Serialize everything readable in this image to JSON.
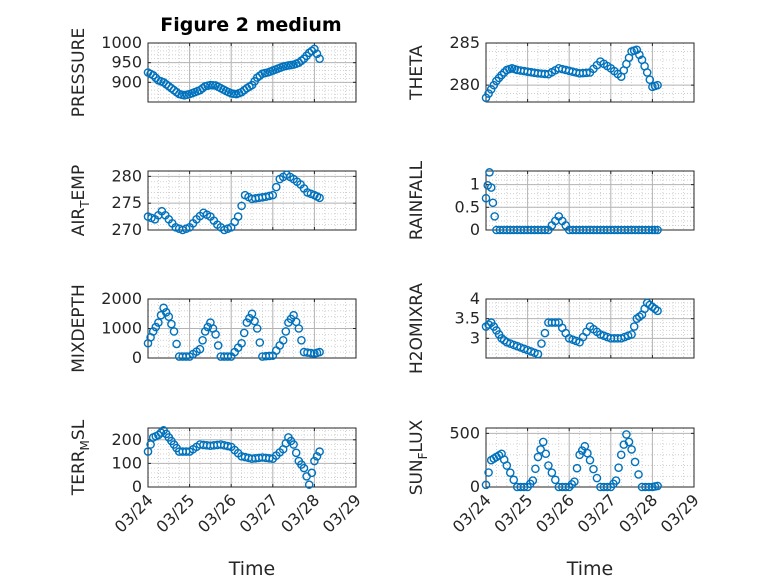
{
  "chart_data": [
    {
      "type": "scatter",
      "title": "Figure 2 medium",
      "ylabel": "PRESSURE",
      "xlim": [
        "03/24",
        "03/29"
      ],
      "ylim": [
        850,
        1000
      ],
      "yticks": [
        "900",
        "950",
        "1000"
      ],
      "xticks": [],
      "xlabel": "",
      "grid": true,
      "x": [
        "03/24 00:00",
        "03/24 03:00",
        "03/24 06:00",
        "03/24 09:00",
        "03/24 12:00",
        "03/24 15:00",
        "03/24 18:00",
        "03/24 21:00",
        "03/25 00:00",
        "03/25 03:00",
        "03/25 06:00",
        "03/25 09:00",
        "03/25 12:00",
        "03/25 15:00",
        "03/25 18:00",
        "03/25 21:00",
        "03/26 00:00",
        "03/26 03:00",
        "03/26 06:00",
        "03/26 09:00",
        "03/26 12:00",
        "03/26 15:00",
        "03/26 18:00",
        "03/26 21:00",
        "03/27 00:00",
        "03/27 03:00",
        "03/27 06:00",
        "03/27 09:00",
        "03/27 12:00",
        "03/27 15:00",
        "03/27 18:00",
        "03/27 21:00",
        "03/28 00:00",
        "03/28 03:00"
      ],
      "values": [
        925,
        918,
        905,
        900,
        890,
        880,
        870,
        867,
        870,
        875,
        880,
        890,
        893,
        892,
        885,
        878,
        872,
        870,
        875,
        885,
        893,
        912,
        922,
        925,
        930,
        935,
        940,
        943,
        945,
        950,
        960,
        975,
        985,
        960
      ]
    },
    {
      "type": "scatter",
      "title": "",
      "ylabel": "THETA",
      "xlim": [
        "03/24",
        "03/29"
      ],
      "ylim": [
        278,
        285
      ],
      "yticks": [
        "280",
        "285"
      ],
      "xticks": [],
      "xlabel": "",
      "grid": true,
      "x": [
        "03/24 00:00",
        "03/24 03:00",
        "03/24 06:00",
        "03/24 09:00",
        "03/24 12:00",
        "03/24 15:00",
        "03/24 18:00",
        "03/25 00:00",
        "03/25 06:00",
        "03/25 12:00",
        "03/25 18:00",
        "03/26 00:00",
        "03/26 06:00",
        "03/26 12:00",
        "03/26 18:00",
        "03/27 00:00",
        "03/27 06:00",
        "03/27 09:00",
        "03/27 12:00",
        "03/27 15:00",
        "03/27 18:00",
        "03/27 21:00",
        "03/28 00:00",
        "03/28 03:00"
      ],
      "values": [
        278.5,
        279.5,
        280.5,
        281.2,
        281.8,
        282.0,
        281.8,
        281.6,
        281.4,
        281.3,
        282.0,
        281.7,
        281.4,
        281.5,
        282.8,
        282.0,
        281.0,
        282.5,
        284.0,
        284.2,
        283.0,
        281.5,
        279.8,
        280.0
      ]
    },
    {
      "type": "scatter",
      "title": "",
      "ylabel": "AIR_TEMP",
      "ylabel_base": "AIR",
      "ylabel_sub": "T",
      "ylabel_rest": "EMP",
      "xlim": [
        "03/24",
        "03/29"
      ],
      "ylim": [
        270,
        281
      ],
      "yticks": [
        "270",
        "275",
        "280"
      ],
      "xticks": [],
      "xlabel": "",
      "grid": true,
      "x": [
        "03/24 00:00",
        "03/24 04:00",
        "03/24 08:00",
        "03/24 12:00",
        "03/24 16:00",
        "03/24 20:00",
        "03/25 00:00",
        "03/25 04:00",
        "03/25 08:00",
        "03/25 12:00",
        "03/25 16:00",
        "03/25 20:00",
        "03/26 00:00",
        "03/26 04:00",
        "03/26 08:00",
        "03/26 12:00",
        "03/26 16:00",
        "03/26 20:00",
        "03/27 00:00",
        "03/27 04:00",
        "03/27 08:00",
        "03/27 12:00",
        "03/27 16:00",
        "03/27 20:00",
        "03/28 00:00",
        "03/28 03:00"
      ],
      "values": [
        272.5,
        272.0,
        273.5,
        272.0,
        270.5,
        270.0,
        270.5,
        272.0,
        273.2,
        272.5,
        271.0,
        270.0,
        270.5,
        272.5,
        276.5,
        275.8,
        276.0,
        276.2,
        276.5,
        279.5,
        280.3,
        279.5,
        278.5,
        277.0,
        276.5,
        276.0
      ]
    },
    {
      "type": "scatter",
      "title": "",
      "ylabel": "RAINFALL",
      "xlim": [
        "03/24",
        "03/29"
      ],
      "ylim": [
        0,
        1.3
      ],
      "yticks": [
        "0",
        "0.5",
        "1"
      ],
      "xticks": [],
      "xlabel": "",
      "grid": true,
      "x": [
        "03/24 00:00",
        "03/24 02:00",
        "03/24 04:00",
        "03/24 06:00",
        "03/24 12:00",
        "03/24 18:00",
        "03/25 00:00",
        "03/25 06:00",
        "03/25 12:00",
        "03/25 18:00",
        "03/26 00:00",
        "03/26 06:00",
        "03/26 12:00",
        "03/26 18:00",
        "03/27 00:00",
        "03/27 06:00",
        "03/27 12:00",
        "03/27 18:00",
        "03/28 00:00",
        "03/28 03:00"
      ],
      "values": [
        0.7,
        1.27,
        0.6,
        0,
        0,
        0,
        0,
        0,
        0,
        0.3,
        0,
        0,
        0,
        0,
        0,
        0,
        0,
        0,
        0,
        0
      ]
    },
    {
      "type": "scatter",
      "title": "",
      "ylabel": "MIXDEPTH",
      "xlim": [
        "03/24",
        "03/29"
      ],
      "ylim": [
        0,
        2000
      ],
      "yticks": [
        "0",
        "1000",
        "2000"
      ],
      "xticks": [],
      "xlabel": "",
      "grid": true,
      "x": [
        "03/24 00:00",
        "03/24 03:00",
        "03/24 06:00",
        "03/24 09:00",
        "03/24 12:00",
        "03/24 15:00",
        "03/24 18:00",
        "03/25 00:00",
        "03/25 06:00",
        "03/25 09:00",
        "03/25 12:00",
        "03/25 15:00",
        "03/25 18:00",
        "03/26 00:00",
        "03/26 06:00",
        "03/26 09:00",
        "03/26 12:00",
        "03/26 15:00",
        "03/26 18:00",
        "03/27 00:00",
        "03/27 06:00",
        "03/27 09:00",
        "03/27 12:00",
        "03/27 15:00",
        "03/27 18:00",
        "03/28 00:00",
        "03/28 03:00"
      ],
      "values": [
        500,
        900,
        1200,
        1700,
        1400,
        900,
        50,
        50,
        300,
        900,
        1200,
        800,
        50,
        50,
        500,
        1200,
        1500,
        1000,
        50,
        80,
        600,
        1200,
        1450,
        1000,
        200,
        150,
        200
      ]
    },
    {
      "type": "scatter",
      "title": "",
      "ylabel": "H2OMIXRA",
      "xlim": [
        "03/24",
        "03/29"
      ],
      "ylim": [
        2.5,
        4
      ],
      "yticks": [
        "3",
        "3.5",
        "4"
      ],
      "xticks": [],
      "xlabel": "",
      "grid": true,
      "x": [
        "03/24 00:00",
        "03/24 03:00",
        "03/24 06:00",
        "03/24 09:00",
        "03/24 12:00",
        "03/24 18:00",
        "03/25 00:00",
        "03/25 06:00",
        "03/25 12:00",
        "03/25 18:00",
        "03/26 00:00",
        "03/26 06:00",
        "03/26 12:00",
        "03/26 18:00",
        "03/27 00:00",
        "03/27 06:00",
        "03/27 12:00",
        "03/27 15:00",
        "03/27 18:00",
        "03/27 21:00",
        "03/28 00:00",
        "03/28 03:00"
      ],
      "values": [
        3.3,
        3.4,
        3.2,
        3.0,
        2.9,
        2.8,
        2.7,
        2.6,
        3.4,
        3.4,
        3.0,
        2.9,
        3.3,
        3.1,
        3.0,
        3.0,
        3.1,
        3.5,
        3.6,
        3.9,
        3.8,
        3.7
      ]
    },
    {
      "type": "scatter",
      "title": "",
      "ylabel": "TERR_MSL",
      "ylabel_base": "TERR",
      "ylabel_sub": "M",
      "ylabel_rest": "SL",
      "xlim": [
        "03/24",
        "03/29"
      ],
      "ylim": [
        0,
        250
      ],
      "yticks": [
        "0",
        "100",
        "200"
      ],
      "xticks": [
        "03/24",
        "03/25",
        "03/26",
        "03/27",
        "03/28",
        "03/29"
      ],
      "xlabel": "Time",
      "grid": true,
      "x": [
        "03/24 00:00",
        "03/24 03:00",
        "03/24 06:00",
        "03/24 09:00",
        "03/24 12:00",
        "03/24 15:00",
        "03/24 18:00",
        "03/25 00:00",
        "03/25 06:00",
        "03/25 12:00",
        "03/25 18:00",
        "03/26 00:00",
        "03/26 06:00",
        "03/26 12:00",
        "03/26 18:00",
        "03/27 00:00",
        "03/27 06:00",
        "03/27 09:00",
        "03/27 12:00",
        "03/27 15:00",
        "03/27 18:00",
        "03/27 21:00",
        "03/28 00:00",
        "03/28 03:00"
      ],
      "values": [
        150,
        210,
        220,
        240,
        210,
        180,
        150,
        150,
        180,
        175,
        180,
        170,
        130,
        120,
        125,
        120,
        160,
        210,
        180,
        110,
        80,
        10,
        110,
        150
      ]
    },
    {
      "type": "scatter",
      "title": "",
      "ylabel": "SUN_FLUX",
      "ylabel_base": "SUN",
      "ylabel_sub": "F",
      "ylabel_rest": "LUX",
      "xlim": [
        "03/24",
        "03/29"
      ],
      "ylim": [
        0,
        550
      ],
      "yticks": [
        "0",
        "500"
      ],
      "xticks": [
        "03/24",
        "03/25",
        "03/26",
        "03/27",
        "03/28",
        "03/29"
      ],
      "xlabel": "Time",
      "grid": true,
      "x": [
        "03/24 00:00",
        "03/24 03:00",
        "03/24 06:00",
        "03/24 09:00",
        "03/24 12:00",
        "03/24 18:00",
        "03/25 00:00",
        "03/25 03:00",
        "03/25 06:00",
        "03/25 09:00",
        "03/25 12:00",
        "03/25 18:00",
        "03/26 00:00",
        "03/26 03:00",
        "03/26 06:00",
        "03/26 09:00",
        "03/26 12:00",
        "03/26 18:00",
        "03/27 00:00",
        "03/27 03:00",
        "03/27 06:00",
        "03/27 09:00",
        "03/27 12:00",
        "03/27 18:00",
        "03/28 00:00",
        "03/28 03:00"
      ],
      "values": [
        20,
        250,
        280,
        310,
        200,
        0,
        0,
        60,
        280,
        420,
        200,
        0,
        0,
        50,
        300,
        380,
        250,
        0,
        0,
        60,
        300,
        490,
        350,
        0,
        0,
        10
      ]
    }
  ],
  "colors": {
    "marker": "#0072BD",
    "grid": "#c8c8c8",
    "axis": "#262626",
    "background": "#ffffff"
  }
}
